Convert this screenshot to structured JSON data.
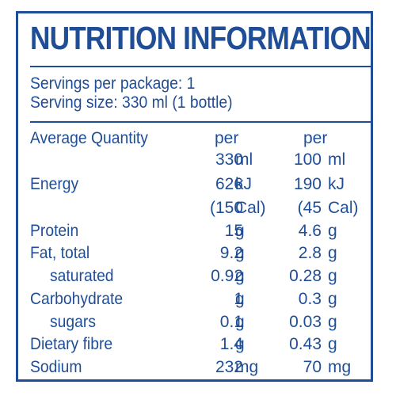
{
  "title": "NUTRITION INFORMATION",
  "servings_per_package": "Servings per package: 1",
  "serving_size": "Serving size: 330 ml (1 bottle)",
  "header": {
    "label": "Average Quantity",
    "col1_line1": "per",
    "col1_val": "330",
    "col1_unit": "ml",
    "col2_line1": "per",
    "col2_val": "100",
    "col2_unit": "ml"
  },
  "rows": [
    {
      "label": "Energy",
      "v1": "626",
      "u1": "kJ",
      "v2": "190",
      "u2": "kJ"
    },
    {
      "label": "",
      "v1": "(150",
      "u1": "Cal)",
      "v2": "(45",
      "u2": "Cal)"
    },
    {
      "label": "Protein",
      "v1": "15",
      "u1": "g",
      "v2": "4.6",
      "u2": "g"
    },
    {
      "label": "Fat, total",
      "v1": "9.2",
      "u1": "g",
      "v2": "2.8",
      "u2": "g"
    },
    {
      "label": "saturated",
      "v1": "0.92",
      "u1": "g",
      "v2": "0.28",
      "u2": "g"
    },
    {
      "label": "Carbohydrate",
      "v1": "1",
      "u1": "g",
      "v2": "0.3",
      "u2": "g"
    },
    {
      "label": "sugars",
      "v1": "0.1",
      "u1": "g",
      "v2": "0.03",
      "u2": "g"
    },
    {
      "label": "Dietary fibre",
      "v1": "1.4",
      "u1": "g",
      "v2": "0.43",
      "u2": "g"
    },
    {
      "label": "Sodium",
      "v1": "232",
      "u1": "mg",
      "v2": "70",
      "u2": "mg"
    }
  ]
}
